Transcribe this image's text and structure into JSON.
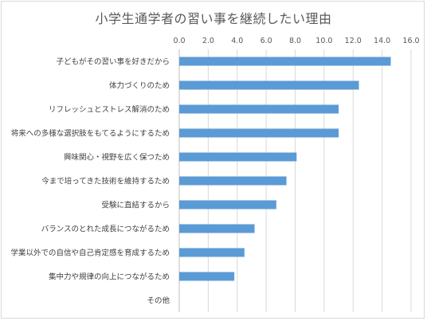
{
  "chart_data": {
    "type": "bar",
    "orientation": "horizontal",
    "title": "小学生通学者の習い事を継続したい理由",
    "xlabel": "",
    "ylabel": "",
    "xlim": [
      0,
      16
    ],
    "x_ticks": [
      "0.0",
      "2.0",
      "4.0",
      "6.0",
      "8.0",
      "10.0",
      "12.0",
      "14.0",
      "16.0"
    ],
    "x_axis_position": "top",
    "grid": true,
    "legend": "none",
    "bar_color": "#5b9bd5",
    "categories": [
      "子どもがその習い事を好きだから",
      "体力づくりのため",
      "リフレッシュとストレス解消のため",
      "将来への多様な選択肢をもてるようにするため",
      "興味関心・視野を広く保つため",
      "今まで培ってきた技術を維持するため",
      "受験に直結するから",
      "バランスのとれた成長につながるため",
      "学業以外での自信や自己肯定感を育成するため",
      "集中力や規律の向上につながるため",
      "その他"
    ],
    "values": [
      14.6,
      12.4,
      11.0,
      11.0,
      8.1,
      7.4,
      6.7,
      5.2,
      4.5,
      3.8,
      0
    ]
  }
}
